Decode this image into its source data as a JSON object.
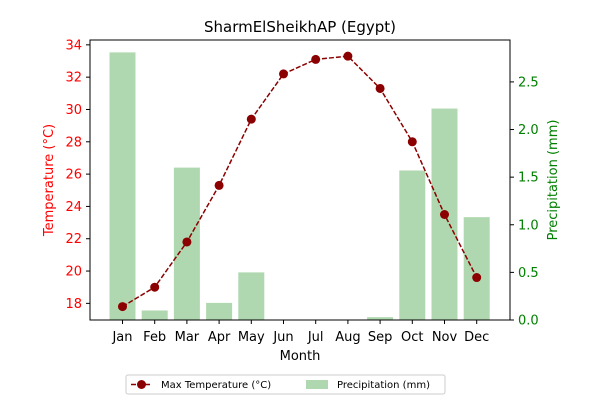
{
  "chart_data": {
    "type": "bar+line",
    "title": "SharmElSheikhAP (Egypt)",
    "xlabel": "Month",
    "ylabel_left": "Temperature (°C)",
    "ylabel_right": "Precipitation (mm)",
    "categories": [
      "Jan",
      "Feb",
      "Mar",
      "Apr",
      "May",
      "Jun",
      "Jul",
      "Aug",
      "Sep",
      "Oct",
      "Nov",
      "Dec"
    ],
    "ylim_left": [
      16.97,
      34.3
    ],
    "ylim_right": [
      0,
      2.94
    ],
    "yticks_left": [
      18,
      20,
      22,
      24,
      26,
      28,
      30,
      32,
      34
    ],
    "yticks_right": [
      0.0,
      0.5,
      1.0,
      1.5,
      2.0,
      2.5
    ],
    "ytick_labels_right": [
      "0.0",
      "0.5",
      "1.0",
      "1.5",
      "2.0",
      "2.5"
    ],
    "series": [
      {
        "name": "Max Temperature (°C)",
        "type": "line",
        "axis": "left",
        "values": [
          17.8,
          19.0,
          21.8,
          25.3,
          29.4,
          32.2,
          33.1,
          33.3,
          31.3,
          28.0,
          23.5,
          19.6
        ]
      },
      {
        "name": "Precipitation (mm)",
        "type": "bar",
        "axis": "right",
        "values": [
          2.81,
          0.1,
          1.6,
          0.18,
          0.5,
          0.0,
          0.0,
          0.0,
          0.03,
          1.57,
          2.22,
          1.08
        ]
      }
    ],
    "grid": false,
    "legend_position": "bottom-center",
    "colors": {
      "line": "#8b0000",
      "bar": "#b0d8b0",
      "left_axis": "#ff0000",
      "right_axis": "#008000"
    }
  }
}
